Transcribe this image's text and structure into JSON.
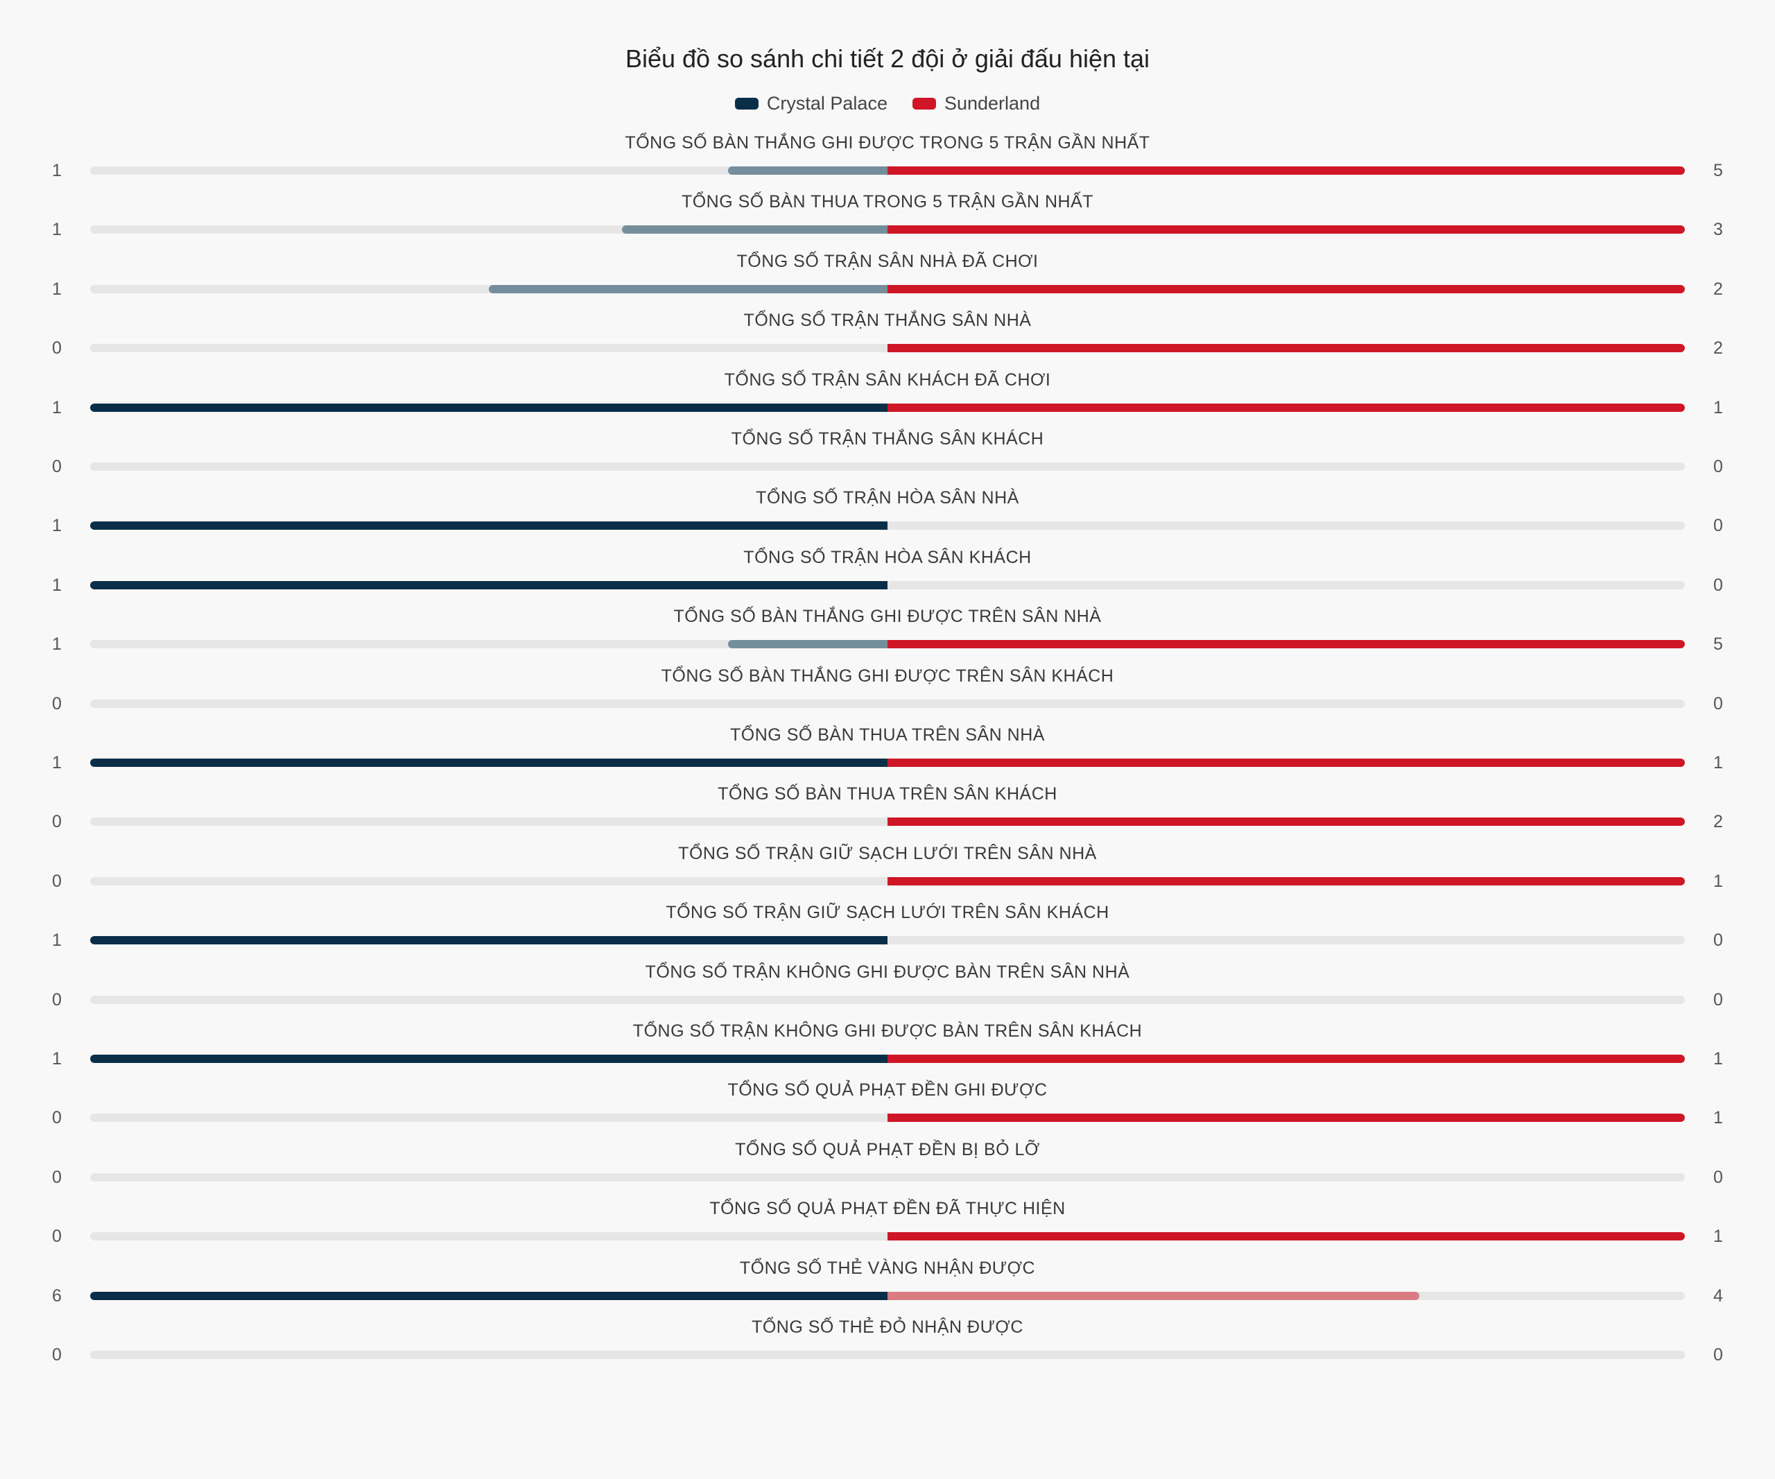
{
  "chart_data": {
    "type": "bar",
    "title": "Biểu đồ so sánh chi tiết 2 đội ở giải đấu hiện tại",
    "series": [
      {
        "name": "Crystal Palace",
        "color": "#0a2e47",
        "dim_color": "#748e9c"
      },
      {
        "name": "Sunderland",
        "color": "#cf1626",
        "dim_color": "#d97b83"
      }
    ],
    "categories": [
      "TỔNG SỐ BÀN THẮNG GHI ĐƯỢC TRONG 5 TRẬN GẦN NHẤT",
      "TỔNG SỐ BÀN THUA TRONG 5 TRẬN GẦN NHẤT",
      "TỔNG SỐ TRẬN SÂN NHÀ ĐÃ CHƠI",
      "TỔNG SỐ TRẬN THẮNG SÂN NHÀ",
      "TỔNG SỐ TRẬN SÂN KHÁCH ĐÃ CHƠI",
      "TỔNG SỐ TRẬN THẮNG SÂN KHÁCH",
      "TỔNG SỐ TRẬN HÒA SÂN NHÀ",
      "TỔNG SỐ TRẬN HÒA SÂN KHÁCH",
      "TỔNG SỐ BÀN THẮNG GHI ĐƯỢC TRÊN SÂN NHÀ",
      "TỔNG SỐ BÀN THẮNG GHI ĐƯỢC TRÊN SÂN KHÁCH",
      "TỔNG SỐ BÀN THUA TRÊN SÂN NHÀ",
      "TỔNG SỐ BÀN THUA TRÊN SÂN KHÁCH",
      "TỔNG SỐ TRẬN GIỮ SẠCH LƯỚI TRÊN SÂN NHÀ",
      "TỔNG SỐ TRẬN GIỮ SẠCH LƯỚI TRÊN SÂN KHÁCH",
      "TỔNG SỐ TRẬN KHÔNG GHI ĐƯỢC BÀN TRÊN SÂN NHÀ",
      "TỔNG SỐ TRẬN KHÔNG GHI ĐƯỢC BÀN TRÊN SÂN KHÁCH",
      "TỔNG SỐ QUẢ PHẠT ĐỀN GHI ĐƯỢC",
      "TỔNG SỐ QUẢ PHẠT ĐỀN BỊ BỎ LỠ",
      "TỔNG SỐ QUẢ PHẠT ĐỀN ĐÃ THỰC HIỆN",
      "TỔNG SỐ THẺ VÀNG NHẬN ĐƯỢC",
      "TỔNG SỐ THẺ ĐỎ NHẬN ĐƯỢC"
    ],
    "left_values": [
      1,
      1,
      1,
      0,
      1,
      0,
      1,
      1,
      1,
      0,
      1,
      0,
      0,
      1,
      0,
      1,
      0,
      0,
      0,
      6,
      0
    ],
    "right_values": [
      5,
      3,
      2,
      2,
      1,
      0,
      0,
      0,
      5,
      0,
      1,
      2,
      1,
      0,
      0,
      1,
      1,
      0,
      1,
      4,
      0
    ],
    "legend_position": "top-center",
    "grid": false
  }
}
